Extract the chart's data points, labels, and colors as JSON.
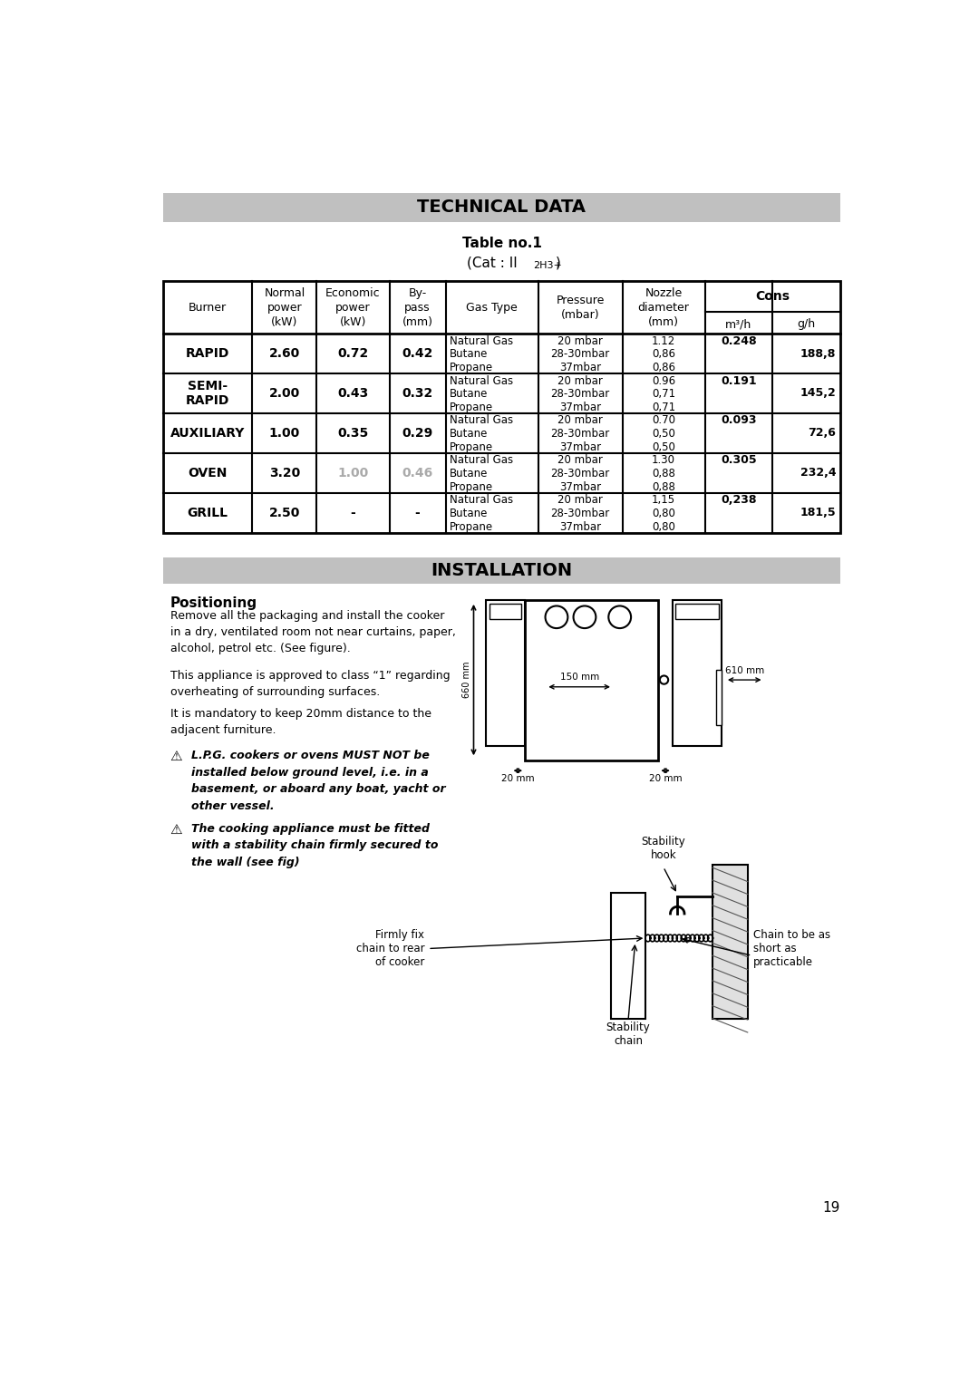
{
  "page_bg": "#ffffff",
  "header_bg": "#c0c0c0",
  "title1": "TECHNICAL DATA",
  "title2": "Table no.1",
  "section2": "INSTALLATION",
  "positioning_title": "Positioning",
  "page_number": "19",
  "cons_header": "Cons",
  "burners": [
    {
      "name": "RAPID",
      "normal": "2.60",
      "economic": "0.72",
      "bypass": "0.42",
      "gas_types": [
        "Natural Gas",
        "Butane",
        "Propane"
      ],
      "pressures": [
        "20 mbar",
        "28-30mbar",
        "37mbar"
      ],
      "nozzles": [
        "1.12",
        "0,86",
        "0,86"
      ],
      "m3h": "0.248",
      "gh": "188,8",
      "economic_grey": false,
      "bypass_grey": false
    },
    {
      "name": "SEMI-\nRAPID",
      "normal": "2.00",
      "economic": "0.43",
      "bypass": "0.32",
      "gas_types": [
        "Natural Gas",
        "Butane",
        "Propane"
      ],
      "pressures": [
        "20 mbar",
        "28-30mbar",
        "37mbar"
      ],
      "nozzles": [
        "0.96",
        "0,71",
        "0,71"
      ],
      "m3h": "0.191",
      "gh": "145,2",
      "economic_grey": false,
      "bypass_grey": false
    },
    {
      "name": "AUXILIARY",
      "normal": "1.00",
      "economic": "0.35",
      "bypass": "0.29",
      "gas_types": [
        "Natural Gas",
        "Butane",
        "Propane"
      ],
      "pressures": [
        "20 mbar",
        "28-30mbar",
        "37mbar"
      ],
      "nozzles": [
        "0.70",
        "0,50",
        "0,50"
      ],
      "m3h": "0.093",
      "gh": "72,6",
      "economic_grey": false,
      "bypass_grey": false
    },
    {
      "name": "OVEN",
      "normal": "3.20",
      "economic": "1.00",
      "bypass": "0.46",
      "gas_types": [
        "Natural Gas",
        "Butane",
        "Propane"
      ],
      "pressures": [
        "20 mbar",
        "28-30mbar",
        "37mbar"
      ],
      "nozzles": [
        "1.30",
        "0,88",
        "0,88"
      ],
      "m3h": "0.305",
      "gh": "232,4",
      "economic_grey": true,
      "bypass_grey": true
    },
    {
      "name": "GRILL",
      "normal": "2.50",
      "economic": "-",
      "bypass": "-",
      "gas_types": [
        "Natural Gas",
        "Butane",
        "Propane"
      ],
      "pressures": [
        "20 mbar",
        "28-30mbar",
        "37mbar"
      ],
      "nozzles": [
        "1,15",
        "0,80",
        "0,80"
      ],
      "m3h": "0,238",
      "gh": "181,5",
      "economic_grey": false,
      "bypass_grey": false
    }
  ]
}
